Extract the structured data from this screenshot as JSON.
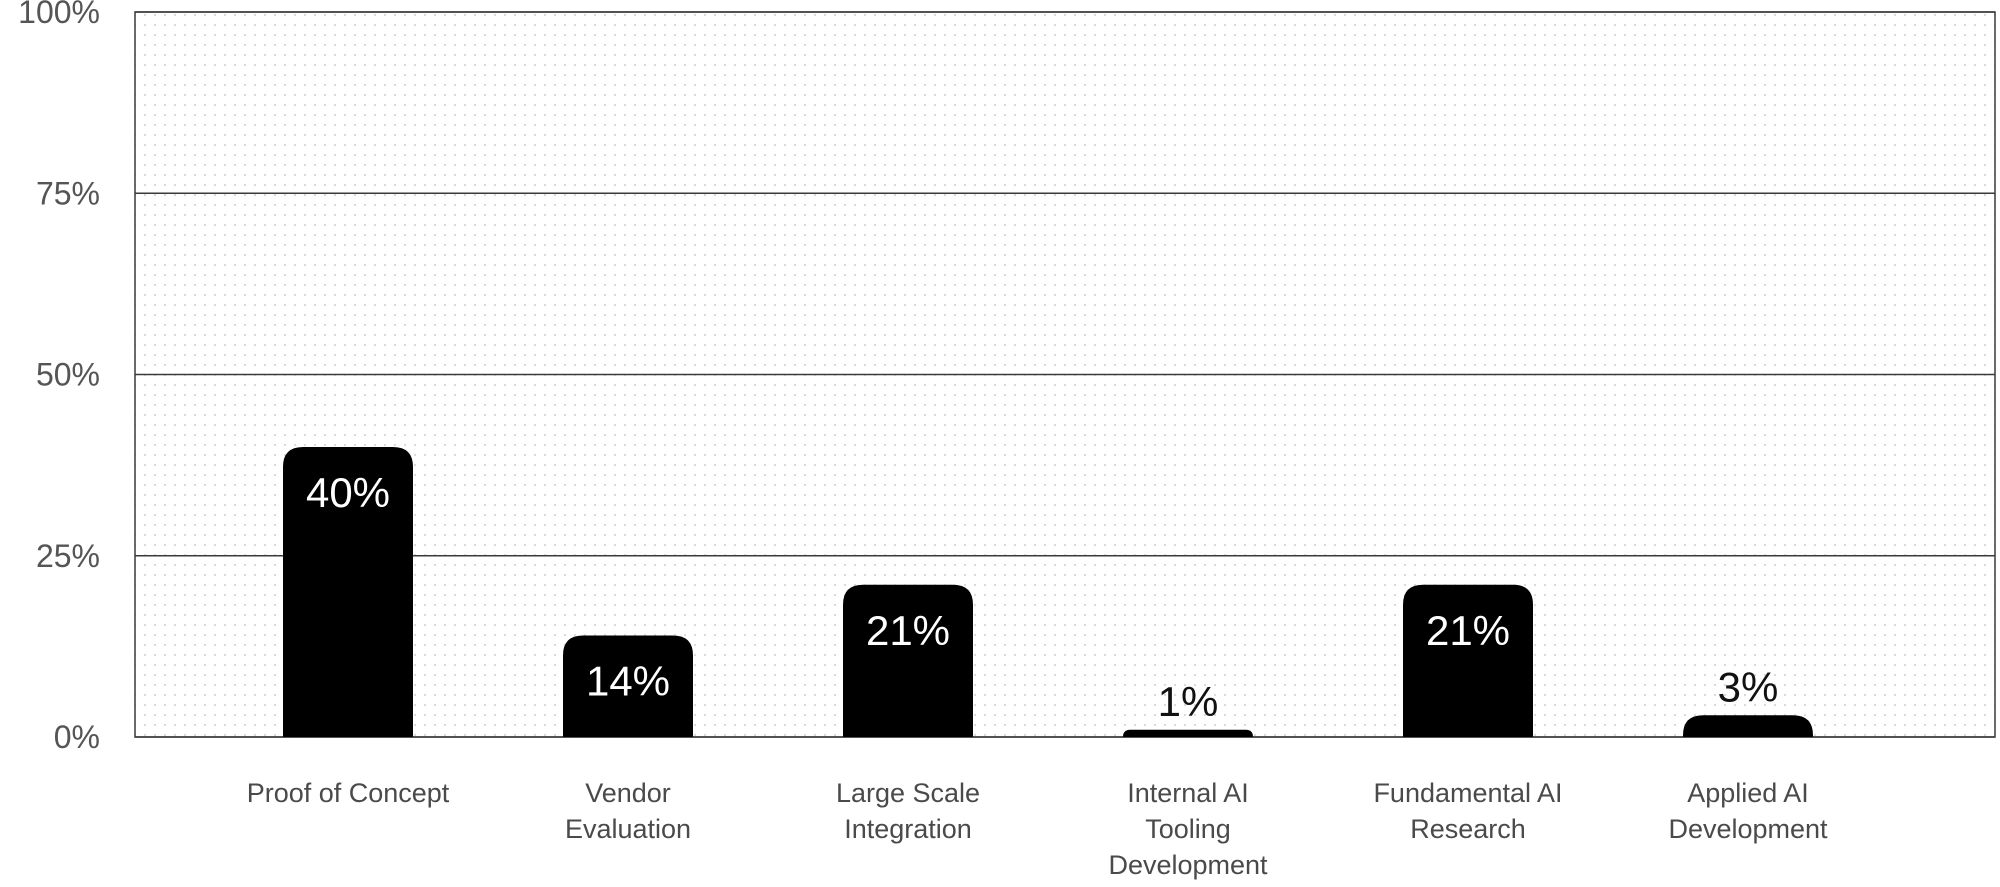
{
  "chart_data": {
    "type": "bar",
    "categories": [
      "Proof of Concept",
      "Vendor Evaluation",
      "Large Scale Integration",
      "Internal AI Tooling Development",
      "Fundamental AI Research",
      "Applied AI Development"
    ],
    "category_lines": [
      [
        "Proof of Concept"
      ],
      [
        "Vendor",
        "Evaluation"
      ],
      [
        "Large Scale",
        "Integration"
      ],
      [
        "Internal AI",
        "Tooling",
        "Development"
      ],
      [
        "Fundamental AI",
        "Research"
      ],
      [
        "Applied AI",
        "Development"
      ]
    ],
    "values": [
      40,
      14,
      21,
      1,
      21,
      3
    ],
    "value_labels": [
      "40%",
      "14%",
      "21%",
      "1%",
      "21%",
      "3%"
    ],
    "ylim": [
      0,
      100
    ],
    "yticks": [
      0,
      25,
      50,
      75,
      100
    ],
    "ytick_labels": [
      "0%",
      "25%",
      "50%",
      "75%",
      "100%"
    ],
    "grid": true,
    "bar_color": "#000000",
    "background_pattern": "dotted"
  }
}
